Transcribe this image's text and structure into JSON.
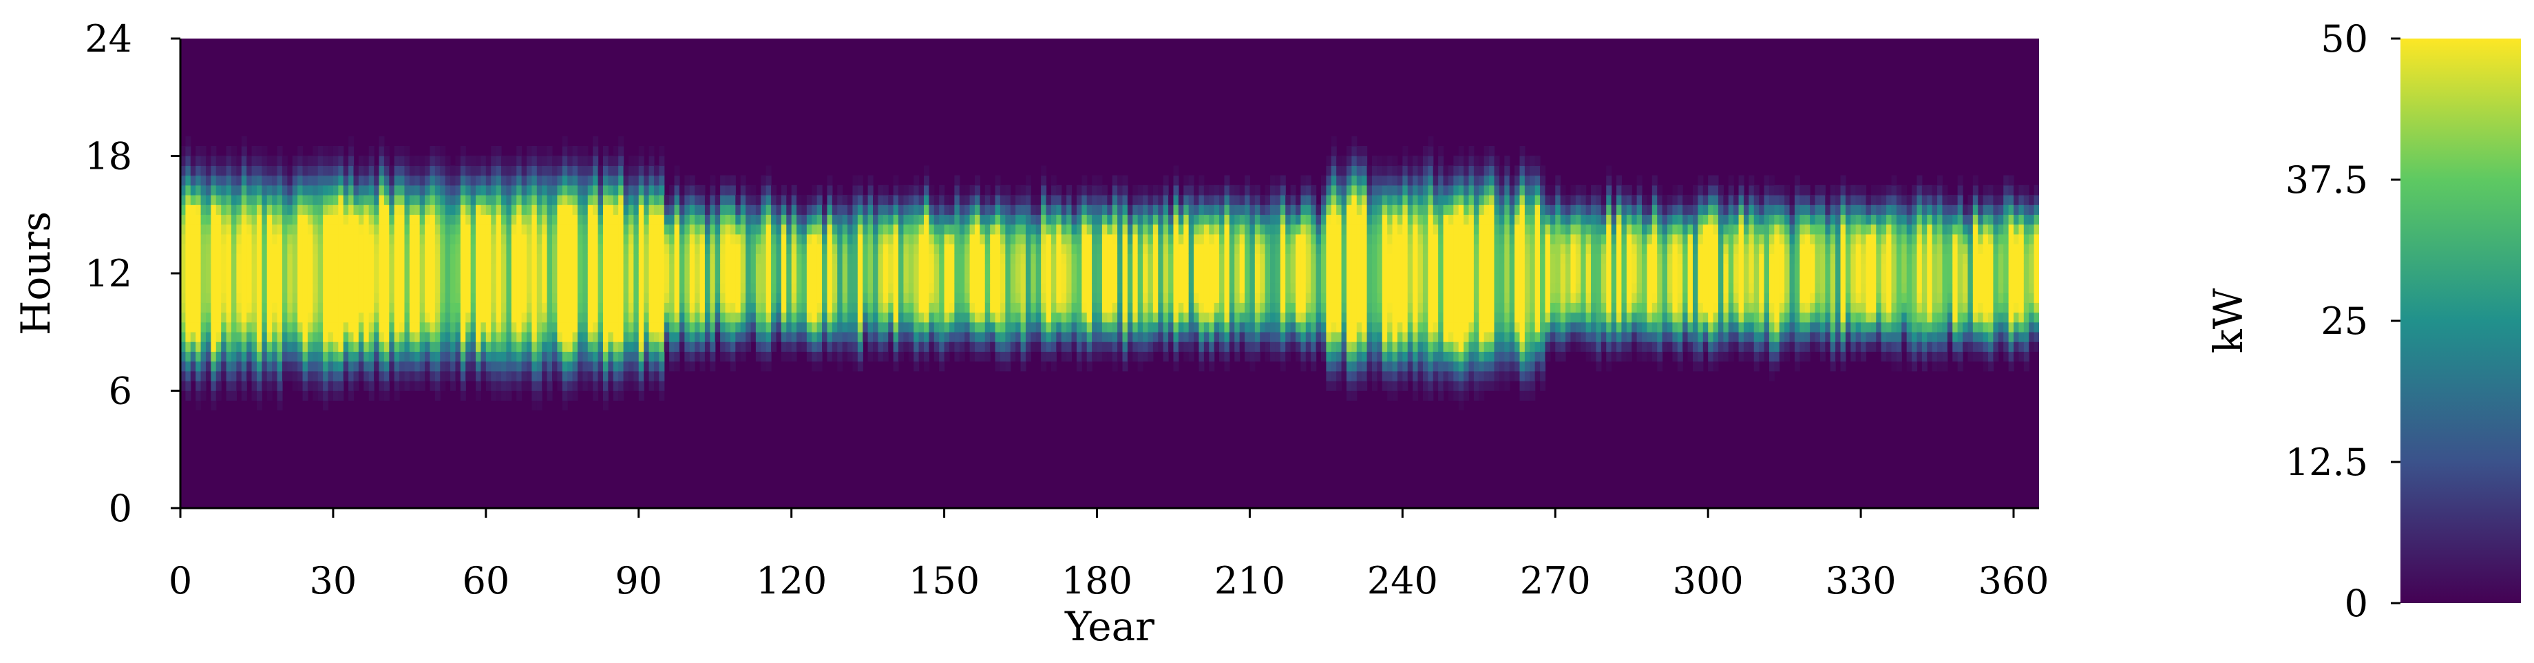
{
  "chart_data": {
    "type": "heatmap",
    "title": "",
    "xlabel": "Year",
    "ylabel": "Hours",
    "xlim": [
      0,
      365
    ],
    "ylim": [
      0,
      24
    ],
    "x_ticks": [
      "0",
      "30",
      "60",
      "90",
      "120",
      "150",
      "180",
      "210",
      "240",
      "270",
      "300",
      "330",
      "360"
    ],
    "y_ticks": [
      "0",
      "6",
      "12",
      "18",
      "24"
    ],
    "colorbar": {
      "label": "kW",
      "range": [
        0,
        50
      ],
      "ticks": [
        "0",
        "12.5",
        "25",
        "37.5",
        "50"
      ],
      "colormap": "viridis",
      "colors": [
        "#440154",
        "#3b528b",
        "#21918c",
        "#5ec962",
        "#fde725"
      ]
    },
    "grid": false,
    "data_description": {
      "active_band_hours_approx": [
        7,
        17
      ],
      "peak_center_hour": 12,
      "peak_value_kW": 50,
      "night_value_kW": 0,
      "wide_band_periods_days": [
        [
          0,
          95
        ],
        [
          225,
          268
        ]
      ],
      "narrow_band_periods_days": [
        [
          95,
          225
        ],
        [
          268,
          365
        ]
      ]
    }
  }
}
